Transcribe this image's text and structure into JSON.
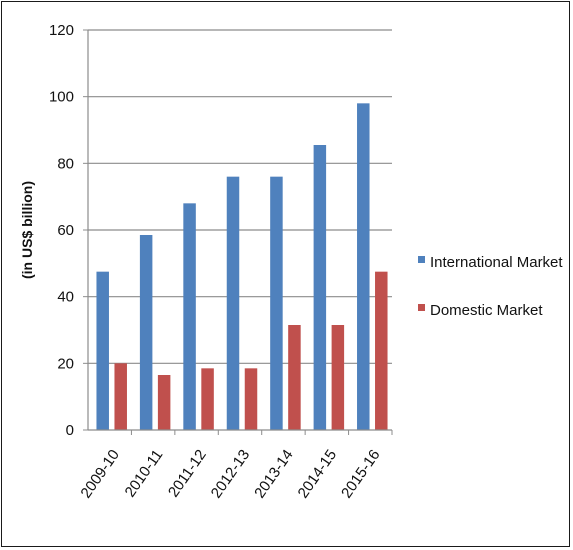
{
  "chart_data": {
    "type": "bar",
    "title": "",
    "xlabel": "",
    "ylabel": "(in US$ billion)",
    "ylim": [
      0,
      120
    ],
    "yticks": [
      0,
      20,
      40,
      60,
      80,
      100,
      120
    ],
    "grid": true,
    "legend_position": "right",
    "categories": [
      "2009-10",
      "2010-11",
      "2011-12",
      "2012-13",
      "2013-14",
      "2014-15",
      "2015-16"
    ],
    "series": [
      {
        "name": "International Market",
        "color": "#4f81bd",
        "values": [
          47.5,
          58.5,
          68,
          76,
          76,
          85.5,
          98
        ]
      },
      {
        "name": "Domestic Market",
        "color": "#c0504d",
        "values": [
          20,
          16.5,
          18.5,
          18.5,
          31.5,
          31.5,
          47.5
        ]
      }
    ]
  }
}
